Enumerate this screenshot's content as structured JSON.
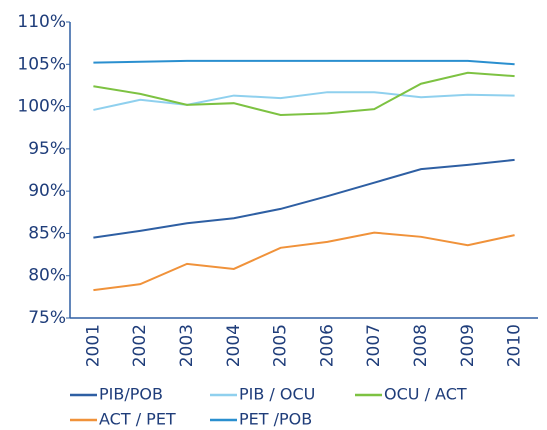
{
  "chart_data": {
    "type": "line",
    "categories": [
      "2001",
      "2002",
      "2003",
      "2004",
      "2005",
      "2006",
      "2007",
      "2008",
      "2009",
      "2010"
    ],
    "series": [
      {
        "name": "PIB/POB",
        "color": "#2e5fa3",
        "values": [
          84.5,
          85.3,
          86.2,
          86.8,
          87.9,
          89.4,
          91.0,
          92.6,
          93.1,
          93.7
        ]
      },
      {
        "name": "PIB / OCU",
        "color": "#8fd0ee",
        "values": [
          99.6,
          100.8,
          100.2,
          101.3,
          101.0,
          101.7,
          101.7,
          101.1,
          101.4,
          101.3
        ]
      },
      {
        "name": "OCU / ACT",
        "color": "#7dc242",
        "values": [
          102.4,
          101.5,
          100.2,
          100.4,
          99.0,
          99.2,
          99.7,
          102.7,
          104.0,
          103.6
        ]
      },
      {
        "name": "ACT / PET",
        "color": "#f0923a",
        "values": [
          78.3,
          79.0,
          81.4,
          80.8,
          83.3,
          84.0,
          85.1,
          84.6,
          83.6,
          84.8
        ]
      },
      {
        "name": "PET /POB",
        "color": "#2a8fcf",
        "values": [
          105.2,
          105.3,
          105.4,
          105.4,
          105.4,
          105.4,
          105.4,
          105.4,
          105.4,
          105.0
        ]
      }
    ],
    "ylim": [
      75,
      110
    ],
    "yticks": [
      {
        "value": 75,
        "label": "75%"
      },
      {
        "value": 80,
        "label": "80%"
      },
      {
        "value": 85,
        "label": "85%"
      },
      {
        "value": 90,
        "label": "90%"
      },
      {
        "value": 95,
        "label": "95%"
      },
      {
        "value": 100,
        "label": "100%"
      },
      {
        "value": 105,
        "label": "105%"
      },
      {
        "value": 110,
        "label": "110%"
      }
    ],
    "grid": false
  }
}
